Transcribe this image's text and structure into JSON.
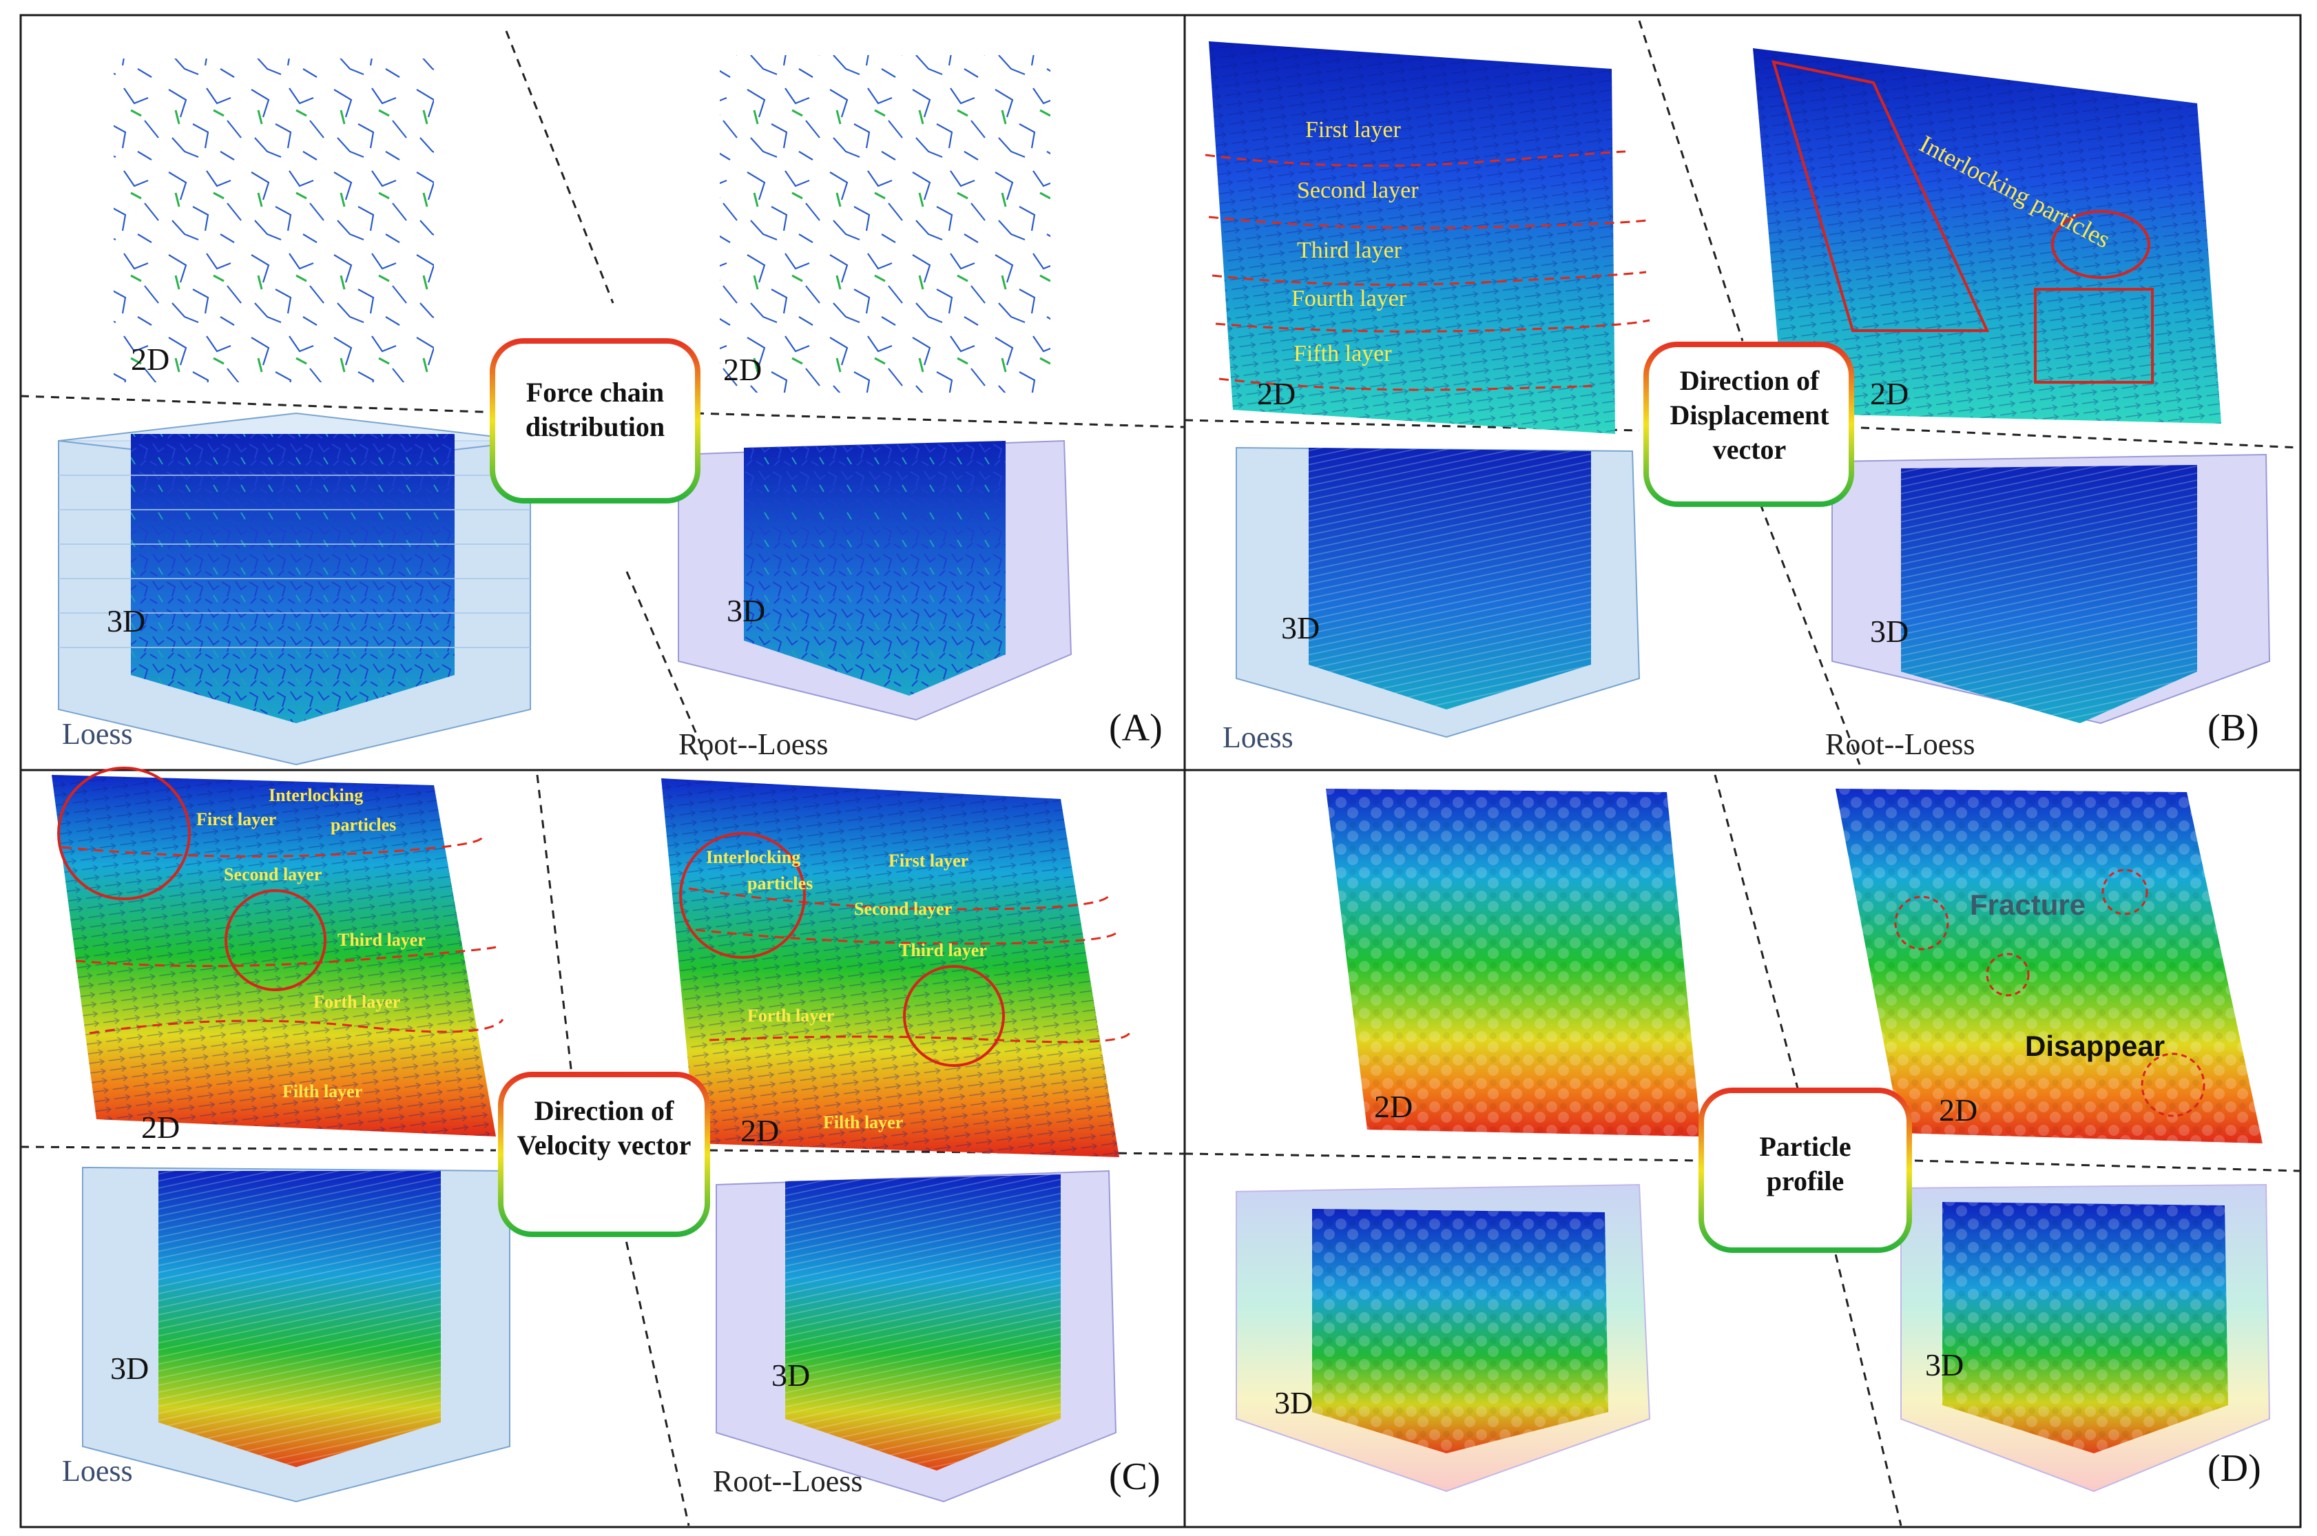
{
  "colors": {
    "blue": "#1a2fd6",
    "cyan": "#19b8d6",
    "green": "#27c23a",
    "yellow": "#e6e01f",
    "orange": "#f07a17",
    "red": "#e02a1a",
    "label_yellow": "#ffe94a",
    "circle_red": "#d8231c"
  },
  "badges": {
    "force_chain": "Force chain distribution",
    "displacement": "Direction of Displacement vector",
    "velocity": "Direction of Velocity vector",
    "particle": "Particle profile"
  },
  "panel_labels": {
    "a": "(A)",
    "b": "(B)",
    "c": "(C)",
    "d": "(D)"
  },
  "sample_labels": {
    "loess": "Loess",
    "root_loess": "Root--Loess"
  },
  "dim_labels": {
    "two_d": "2D",
    "three_d": "3D"
  },
  "panel_b_layers": [
    "First layer",
    "Second layer",
    "Third layer",
    "Fourth layer",
    "Fifth layer"
  ],
  "panel_b_interlocking": "Interlocking particles",
  "panel_c_left": {
    "interlocking": "Interlocking",
    "particles": "particles",
    "layers": [
      "First layer",
      "Second layer",
      "Third layer",
      "Forth  layer",
      "Filth  layer"
    ]
  },
  "panel_c_right": {
    "interlocking": "Interlocking",
    "particles": "particles",
    "layers": [
      "First layer",
      "Second layer",
      "Third layer",
      "Forth  layer",
      "Filth  layer"
    ]
  },
  "panel_d_annotations": {
    "fracture": "Fracture",
    "disappear": "Disappear"
  }
}
